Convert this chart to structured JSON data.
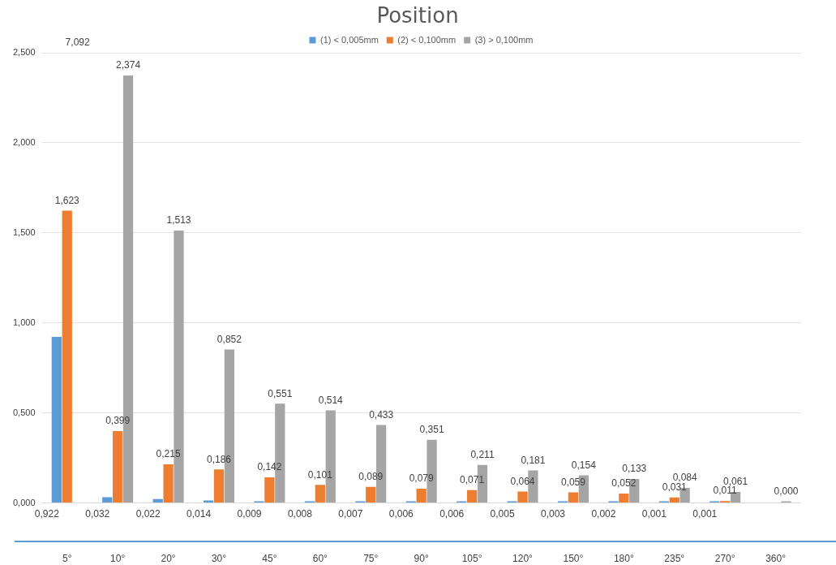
{
  "chart_data": {
    "type": "bar",
    "title": "Position",
    "categories": [
      "5°",
      "10°",
      "20°",
      "30°",
      "45°",
      "60°",
      "75°",
      "90°",
      "105°",
      "120°",
      "150°",
      "180°",
      "235°",
      "270°",
      "360°"
    ],
    "series": [
      {
        "name": "(1) < 0,005mm",
        "color": "#5b9bd5",
        "values": [
          0.922,
          0.032,
          0.022,
          0.014,
          0.009,
          0.008,
          0.007,
          0.006,
          0.006,
          0.005,
          0.003,
          0.002,
          0.001,
          0.001,
          null
        ],
        "value_labels": [
          "0,922",
          "0,032",
          "0,022",
          "0,014",
          "0,009",
          "0,008",
          "0,007",
          "0,006",
          "0,006",
          "0,005",
          "0,003",
          "0,002",
          "0,001",
          "0,001",
          null
        ]
      },
      {
        "name": "(2) < 0,100mm",
        "color": "#ed7d31",
        "values": [
          1.623,
          0.399,
          0.215,
          0.186,
          0.142,
          0.101,
          0.089,
          0.079,
          0.071,
          0.064,
          0.059,
          0.052,
          0.031,
          0.011,
          null
        ],
        "value_labels": [
          "1,623",
          "0,399",
          "0,215",
          "0,186",
          "0,142",
          "0,101",
          "0,089",
          "0,079",
          "0,071",
          "0,064",
          "0,059",
          "0,052",
          "0,031",
          "0,011",
          null
        ]
      },
      {
        "name": "(3) > 0,100mm",
        "color": "#a5a5a5",
        "values": [
          null,
          2.374,
          1.513,
          0.852,
          0.551,
          0.514,
          0.433,
          0.351,
          0.211,
          0.181,
          0.154,
          0.133,
          0.084,
          0.061,
          0
        ],
        "value_labels": [
          "7,092",
          "2,374",
          "1,513",
          "0,852",
          "0,551",
          "0,514",
          "0,433",
          "0,351",
          "0,211",
          "0,181",
          "0,154",
          "0,133",
          "0,084",
          "0,061",
          "0,000"
        ]
      }
    ],
    "ylim": [
      0,
      2.5
    ],
    "yticks": [
      {
        "value": 0,
        "label": "0,000"
      },
      {
        "value": 0.5,
        "label": "0,500"
      },
      {
        "value": 1,
        "label": "1,000"
      },
      {
        "value": 1.5,
        "label": "1,500"
      },
      {
        "value": 2,
        "label": "2,000"
      },
      {
        "value": 2.5,
        "label": "2,500"
      }
    ],
    "grid": "y",
    "legend": "top"
  }
}
